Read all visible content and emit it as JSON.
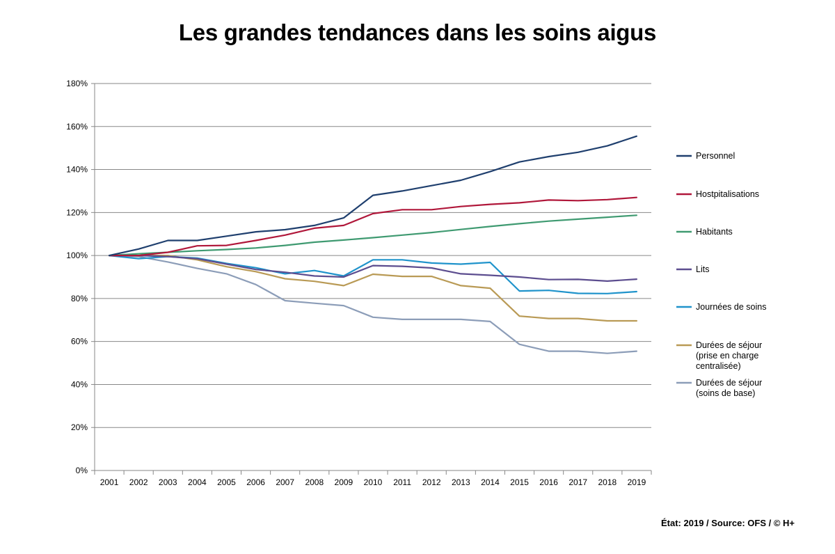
{
  "chart_data": {
    "type": "line",
    "title": "Les grandes tendances dans les soins aigus",
    "xlabel": "",
    "ylabel": "",
    "ylim": [
      0,
      180
    ],
    "y_ticks": [
      "0%",
      "20%",
      "40%",
      "60%",
      "80%",
      "100%",
      "120%",
      "140%",
      "160%",
      "180%"
    ],
    "grid": true,
    "legend_position": "right",
    "x": [
      "2001",
      "2002",
      "2003",
      "2004",
      "2005",
      "2006",
      "2007",
      "2008",
      "2009",
      "2010",
      "2011",
      "2012",
      "2013",
      "2014",
      "2015",
      "2016",
      "2017",
      "2018",
      "2019"
    ],
    "series": [
      {
        "name": "Personnel",
        "color": "#1f3f6e",
        "values": [
          100,
          103,
          107,
          107,
          109,
          111,
          112,
          114,
          117.5,
          128,
          130,
          132.5,
          135,
          139,
          143.5,
          146,
          148,
          151,
          155.5
        ]
      },
      {
        "name": "Hostpitalisations",
        "color": "#b0173a",
        "values": [
          100,
          100,
          101.5,
          104.5,
          104.7,
          107,
          109.5,
          112.7,
          114,
          119.5,
          121.3,
          121.3,
          122.8,
          123.8,
          124.5,
          125.8,
          125.5,
          126,
          127
        ]
      },
      {
        "name": "Habitants",
        "color": "#3f9a71",
        "values": [
          100,
          100.8,
          101.5,
          102.2,
          102.8,
          103.5,
          104.7,
          106.2,
          107.2,
          108.3,
          109.5,
          110.7,
          112.1,
          113.5,
          114.8,
          116,
          116.9,
          117.8,
          118.7
        ]
      },
      {
        "name": "Lits",
        "color": "#5c4d8f",
        "values": [
          100,
          100,
          99.5,
          98.5,
          96,
          93.5,
          92.2,
          90.5,
          90,
          95.3,
          95,
          94.2,
          91.5,
          90.8,
          90,
          88.8,
          88.9,
          88.1,
          89
        ]
      },
      {
        "name": "Journées de soins",
        "color": "#1f93cb",
        "values": [
          100,
          98.5,
          99.5,
          98.8,
          96.3,
          94.3,
          91.5,
          93,
          90.5,
          98,
          98,
          96.5,
          96,
          96.8,
          83.5,
          83.8,
          82.4,
          82.3,
          83.2
        ]
      },
      {
        "name": "Durées de séjour (prise en charge centralisée)",
        "color": "#b99a55",
        "label_lines": [
          "Durées de séjour",
          "(prise en charge",
          "centralisée)"
        ],
        "values": [
          100,
          100,
          100,
          98,
          94.8,
          92.5,
          89.2,
          88,
          86,
          91.3,
          90.3,
          90.3,
          86,
          84.8,
          71.8,
          70.7,
          70.7,
          69.6,
          69.6
        ]
      },
      {
        "name": "Durées de séjour (soins de base)",
        "color": "#8c9db8",
        "label_lines": [
          "Durées de séjour",
          "(soins de base)"
        ],
        "values": [
          100,
          99.5,
          97,
          94,
          91.5,
          86.5,
          79,
          77.8,
          76.7,
          71.3,
          70.3,
          70.3,
          70.3,
          69.3,
          58.7,
          55.5,
          55.5,
          54.5,
          55.5
        ]
      }
    ]
  },
  "footer": "État: 2019 / Source: OFS / © H+"
}
